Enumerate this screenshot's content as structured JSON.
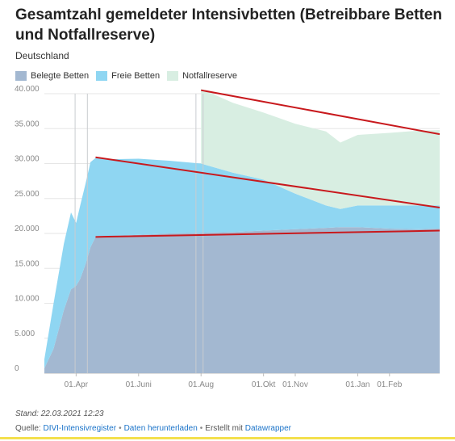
{
  "chart_data": {
    "type": "area",
    "title": "Gesamtzahl gemeldeter Intensivbetten (Betreibbare Betten und Notfallreserve)",
    "subtitle": "Deutschland",
    "xlabel": "",
    "ylabel": "",
    "ylim": [
      0,
      40000
    ],
    "xlim": [
      "2020-03-01",
      "2021-03-22"
    ],
    "stacked": true,
    "grid": true,
    "legend_position": "top-left",
    "y_ticks": [
      0,
      5000,
      10000,
      15000,
      20000,
      25000,
      30000,
      35000,
      40000
    ],
    "y_tick_labels": [
      "0",
      "5.000",
      "10.000",
      "15.000",
      "20.000",
      "25.000",
      "30.000",
      "35.000",
      "40.000"
    ],
    "x_ticks": [
      "2020-04-01",
      "2020-06-01",
      "2020-08-01",
      "2020-10-01",
      "2020-11-01",
      "2021-01-01",
      "2021-02-01"
    ],
    "x_tick_labels": [
      "01.Apr",
      "01.Juni",
      "01.Aug",
      "01.Okt",
      "01.Nov",
      "01.Jan",
      "01.Feb"
    ],
    "x": [
      "2020-03-01",
      "2020-03-10",
      "2020-03-20",
      "2020-03-27",
      "2020-04-01",
      "2020-04-05",
      "2020-04-10",
      "2020-04-15",
      "2020-04-20",
      "2020-05-01",
      "2020-06-01",
      "2020-07-01",
      "2020-08-01",
      "2020-09-01",
      "2020-10-01",
      "2020-11-01",
      "2020-12-01",
      "2020-12-15",
      "2021-01-01",
      "2021-02-01",
      "2021-03-01",
      "2021-03-22"
    ],
    "series": [
      {
        "name": "Belegte Betten",
        "color": "#a3b8d1",
        "values": [
          700,
          3500,
          9000,
          12000,
          12500,
          13500,
          15500,
          18000,
          19500,
          19600,
          19800,
          20000,
          20100,
          20200,
          20400,
          20600,
          20800,
          20900,
          20900,
          20700,
          20600,
          20700
        ]
      },
      {
        "name": "Freie Betten",
        "color": "#8fd6f2",
        "values": [
          1300,
          6500,
          9500,
          11000,
          9000,
          10500,
          11500,
          12200,
          11300,
          11000,
          10900,
          10400,
          9900,
          8500,
          7300,
          5100,
          3200,
          2600,
          3100,
          3300,
          3400,
          3300
        ]
      },
      {
        "name": "Notfallreserve",
        "color": "#d8eee2",
        "values": [
          0,
          0,
          0,
          0,
          0,
          0,
          0,
          0,
          0,
          0,
          0,
          0,
          10700,
          10000,
          9600,
          10000,
          10600,
          9500,
          10100,
          10400,
          10700,
          10800
        ]
      }
    ]
  },
  "footer": {
    "stand": "Stand: 22.03.2021 12:23",
    "source_label": "Quelle: ",
    "source_link": "DIVI-Intensivregister",
    "sep": "•",
    "download_link": "Daten herunterladen",
    "created_label": "Erstellt mit ",
    "datawrapper_link": "Datawrapper"
  },
  "colors": {
    "trend_line": "#c8191d",
    "grid": "#e6e6e6",
    "vertical_marker": "#c9ccd0",
    "accent_bar": "#f4e04d"
  }
}
